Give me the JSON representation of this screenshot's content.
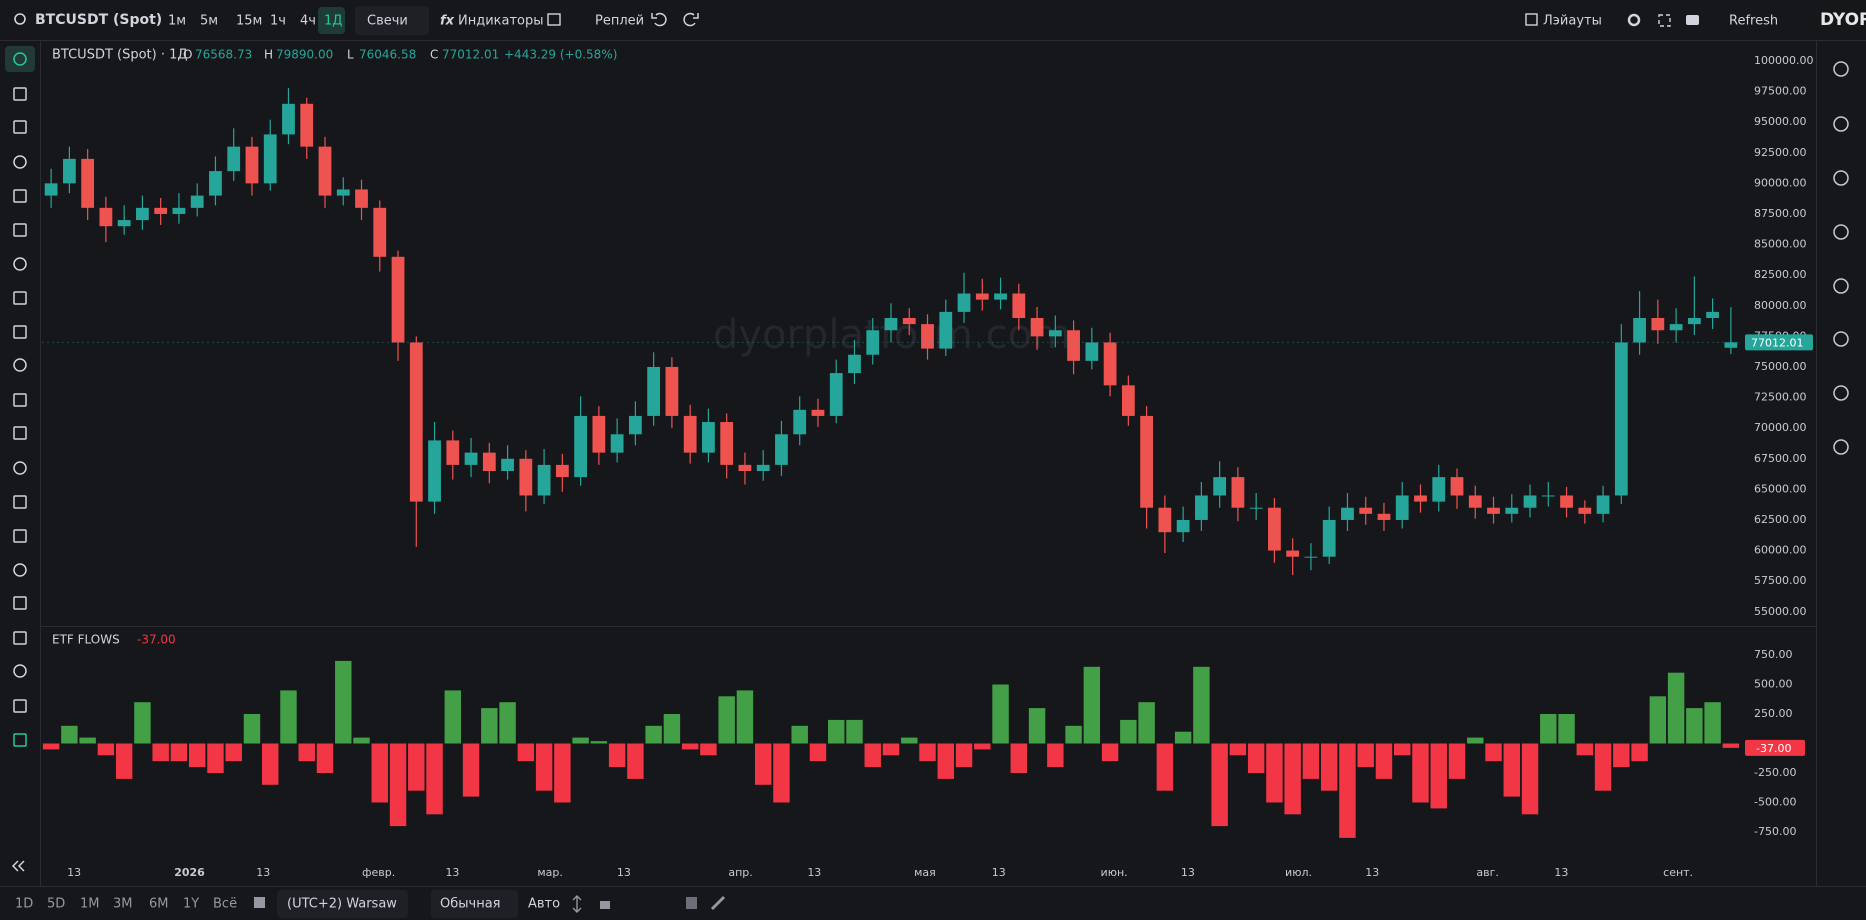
{
  "header": {
    "symbol": "BTCUSDT (Spot)",
    "timeframes": [
      "1м",
      "5м",
      "15м",
      "1ч",
      "4ч",
      "1Д"
    ],
    "chart_style": "Свечи",
    "indicators": "Индикаторы",
    "replay": "Реплей",
    "layouts": "Лэйауты",
    "refresh": "Refresh",
    "logo": "DYOR"
  },
  "legend": {
    "title": "BTCUSDT (Spot) · 1Д",
    "items": [
      {
        "key": "O",
        "value": "76568.73"
      },
      {
        "key": "H",
        "value": "79890.00"
      },
      {
        "key": "L",
        "value": "76046.58"
      },
      {
        "key": "C",
        "value": "77012.01"
      }
    ],
    "change": "+443.29 (+0.58%)"
  },
  "watermark": "dyorplatform.com",
  "footer": {
    "ranges": [
      "1D",
      "5D",
      "1M",
      "3M",
      "6M",
      "1Y",
      "Всё"
    ],
    "timezone": "(UTC+2) Warsaw",
    "scale_mode": "Обычная",
    "auto": "Авто"
  },
  "chart_data": [
    {
      "type": "candlestick",
      "up_color": "#26a69a",
      "down_color": "#ef5350",
      "last_value_label": "77012.01",
      "open": [
        89000,
        90000,
        92000,
        88000,
        86500,
        87000,
        88000,
        87500,
        88000,
        89000,
        91000,
        93000,
        90000,
        94000,
        96500,
        93000,
        89000,
        89500,
        88000,
        84000,
        77000,
        64000,
        69000,
        67000,
        68000,
        66500,
        67500,
        64500,
        67000,
        66000,
        71000,
        68000,
        69500,
        71000,
        75000,
        71000,
        68000,
        70500,
        67000,
        66500,
        67000,
        69500,
        71500,
        71000,
        74500,
        76000,
        78000,
        79000,
        78500,
        76500,
        79500,
        81000,
        80500,
        81000,
        79000,
        77500,
        78000,
        75500,
        77000,
        73500,
        71000,
        63500,
        61500,
        62500,
        64500,
        66000,
        63500,
        63500,
        60000,
        59500,
        59500,
        62500,
        63500,
        63000,
        62500,
        64500,
        64000,
        66000,
        64500,
        63500,
        63000,
        63500,
        64500,
        64500,
        63500,
        63000,
        64500,
        77000,
        79000,
        78000,
        78500,
        79000,
        76568.73
      ],
      "high": [
        91200,
        93000,
        92800,
        88900,
        88200,
        89000,
        88800,
        89200,
        90000,
        92200,
        94500,
        93800,
        95200,
        97800,
        97000,
        93800,
        90500,
        90300,
        88600,
        84500,
        77500,
        70500,
        69800,
        69200,
        68800,
        68600,
        68200,
        68300,
        67900,
        72600,
        71800,
        70800,
        72200,
        76200,
        75800,
        71900,
        71600,
        71200,
        68000,
        68200,
        70600,
        72600,
        72400,
        75600,
        77200,
        79000,
        80200,
        79800,
        79300,
        80500,
        82700,
        82200,
        82300,
        81800,
        79900,
        79200,
        78800,
        78200,
        77800,
        74300,
        71800,
        64500,
        63600,
        65600,
        67300,
        66800,
        64700,
        64300,
        61000,
        60600,
        63600,
        64700,
        64400,
        63900,
        65600,
        65400,
        67000,
        66700,
        65300,
        64400,
        64600,
        65400,
        65600,
        65200,
        64100,
        65300,
        78500,
        81200,
        80500,
        79800,
        82400,
        80600,
        79890
      ],
      "low": [
        88000,
        89200,
        87000,
        85200,
        85800,
        86200,
        86600,
        86700,
        87300,
        88200,
        90200,
        89000,
        89400,
        93200,
        92000,
        88000,
        88200,
        87000,
        82800,
        75500,
        60300,
        63000,
        65800,
        66000,
        65500,
        65800,
        63200,
        63800,
        64800,
        65300,
        67000,
        67200,
        68600,
        70200,
        70000,
        67100,
        67200,
        65900,
        65400,
        65700,
        66100,
        68600,
        70100,
        70400,
        73600,
        75200,
        77000,
        77600,
        75600,
        75900,
        78600,
        79600,
        79700,
        78000,
        76400,
        76600,
        74400,
        74800,
        72600,
        70200,
        61800,
        59800,
        60700,
        61600,
        63500,
        62400,
        62500,
        59000,
        58000,
        58400,
        58900,
        61600,
        62100,
        61600,
        61800,
        63100,
        63200,
        63400,
        62600,
        62200,
        62300,
        62700,
        63600,
        62700,
        62200,
        62300,
        63800,
        76000,
        76900,
        77000,
        77600,
        78100,
        76046.58
      ],
      "close": [
        90000,
        92000,
        88000,
        86500,
        87000,
        88000,
        87500,
        88000,
        89000,
        91000,
        93000,
        90000,
        94000,
        96500,
        93000,
        89000,
        89500,
        88000,
        84000,
        77000,
        64000,
        69000,
        67000,
        68000,
        66500,
        67500,
        64500,
        67000,
        66000,
        71000,
        68000,
        69500,
        71000,
        75000,
        71000,
        68000,
        70500,
        67000,
        66500,
        67000,
        69500,
        71500,
        71000,
        74500,
        76000,
        78000,
        79000,
        78500,
        76500,
        79500,
        81000,
        80500,
        81000,
        79000,
        77500,
        78000,
        75500,
        77000,
        73500,
        71000,
        63500,
        61500,
        62500,
        64500,
        66000,
        63500,
        63500,
        60000,
        59500,
        59500,
        62500,
        63500,
        63000,
        62500,
        64500,
        64000,
        66000,
        64500,
        63500,
        63000,
        63500,
        64500,
        64500,
        63500,
        63000,
        64500,
        77000,
        79000,
        78000,
        78500,
        79000,
        79500,
        77012.01
      ],
      "ylim": [
        54000,
        101500
      ],
      "yticks": [
        {
          "value": 55000,
          "label": "55000.00"
        },
        {
          "value": 57500,
          "label": "57500.00"
        },
        {
          "value": 60000,
          "label": "60000.00"
        },
        {
          "value": 62500,
          "label": "62500.00"
        },
        {
          "value": 65000,
          "label": "65000.00"
        },
        {
          "value": 67500,
          "label": "67500.00"
        },
        {
          "value": 70000,
          "label": "70000.00"
        },
        {
          "value": 72500,
          "label": "72500.00"
        },
        {
          "value": 75000,
          "label": "75000.00"
        },
        {
          "value": 77500,
          "label": "77500.00"
        },
        {
          "value": 80000,
          "label": "80000.00"
        },
        {
          "value": 82500,
          "label": "82500.00"
        },
        {
          "value": 85000,
          "label": "85000.00"
        },
        {
          "value": 87500,
          "label": "87500.00"
        },
        {
          "value": 90000,
          "label": "90000.00"
        },
        {
          "value": 92500,
          "label": "92500.00"
        },
        {
          "value": 95000,
          "label": "95000.00"
        },
        {
          "value": 97500,
          "label": "97500.00"
        },
        {
          "value": 100000,
          "label": "100000.00"
        }
      ],
      "xlim": [
        -0.5,
        92.5
      ],
      "xticks": [
        {
          "value": 1.26,
          "label": "13"
        },
        {
          "value": 7.58,
          "label": "2026"
        },
        {
          "value": 11.62,
          "label": "13"
        },
        {
          "value": 17.94,
          "label": "февр."
        },
        {
          "value": 21.98,
          "label": "13"
        },
        {
          "value": 27.33,
          "label": "мар."
        },
        {
          "value": 31.37,
          "label": "13"
        },
        {
          "value": 37.76,
          "label": "апр."
        },
        {
          "value": 41.8,
          "label": "13"
        },
        {
          "value": 47.86,
          "label": "мая"
        },
        {
          "value": 51.9,
          "label": "13"
        },
        {
          "value": 58.22,
          "label": "июн."
        },
        {
          "value": 62.26,
          "label": "13"
        },
        {
          "value": 68.32,
          "label": "июл."
        },
        {
          "value": 72.36,
          "label": "13"
        },
        {
          "value": 78.68,
          "label": "авг."
        },
        {
          "value": 82.72,
          "label": "13"
        },
        {
          "value": 89.11,
          "label": "сент."
        }
      ]
    },
    {
      "type": "bar",
      "title": "ETF FLOWS",
      "last_value_label": "-37.00",
      "positive_color": "#43a047",
      "negative_color": "#f23645",
      "values": [
        -50,
        150,
        50,
        -100,
        -300,
        350,
        -150,
        -150,
        -200,
        -250,
        -150,
        250,
        -350,
        450,
        -150,
        -250,
        700,
        50,
        -500,
        -700,
        -400,
        -600,
        450,
        -450,
        300,
        350,
        -150,
        -400,
        -500,
        50,
        20,
        -200,
        -300,
        150,
        250,
        -50,
        -100,
        400,
        450,
        -350,
        -500,
        150,
        -150,
        200,
        200,
        -200,
        -100,
        50,
        -150,
        -300,
        -200,
        -50,
        500,
        -250,
        300,
        -200,
        150,
        650,
        -150,
        200,
        350,
        -400,
        100,
        650,
        -700,
        -100,
        -250,
        -500,
        -600,
        -300,
        -400,
        -800,
        -200,
        -300,
        -100,
        -500,
        -550,
        -300,
        50,
        -150,
        -450,
        -600,
        250,
        250,
        -100,
        -400,
        -200,
        -150,
        400,
        600,
        300,
        350,
        -37
      ],
      "ylim": [
        -950,
        950
      ],
      "yticks": [
        {
          "value": 750,
          "label": "750.00"
        },
        {
          "value": 500,
          "label": "500.00"
        },
        {
          "value": 250,
          "label": "250.00"
        },
        {
          "value": -250,
          "label": "-250.00"
        },
        {
          "value": -500,
          "label": "-500.00"
        },
        {
          "value": -750,
          "label": "-750.00"
        }
      ]
    }
  ]
}
